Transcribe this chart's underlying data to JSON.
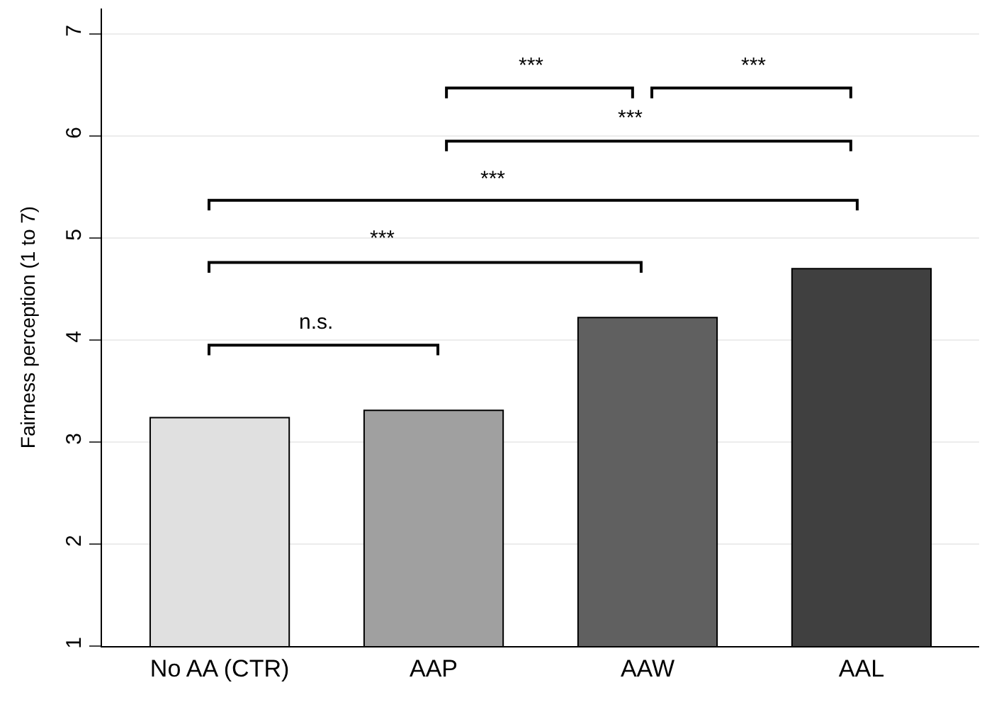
{
  "chart_data": {
    "type": "bar",
    "ylabel": "Fairness perception (1 to 7)",
    "categories": [
      "No AA (CTR)",
      "AAP",
      "AAW",
      "AAL"
    ],
    "values": [
      3.24,
      3.31,
      4.22,
      4.7
    ],
    "colors": [
      "#e0e0e0",
      "#a0a0a0",
      "#606060",
      "#404040"
    ],
    "ylim": [
      1,
      7.25
    ],
    "yticks": [
      1,
      2,
      3,
      4,
      5,
      6,
      7
    ],
    "grid": "y",
    "legend": false,
    "annotations": [
      "n.s.",
      "***",
      "***",
      "***",
      "***",
      "***"
    ]
  }
}
